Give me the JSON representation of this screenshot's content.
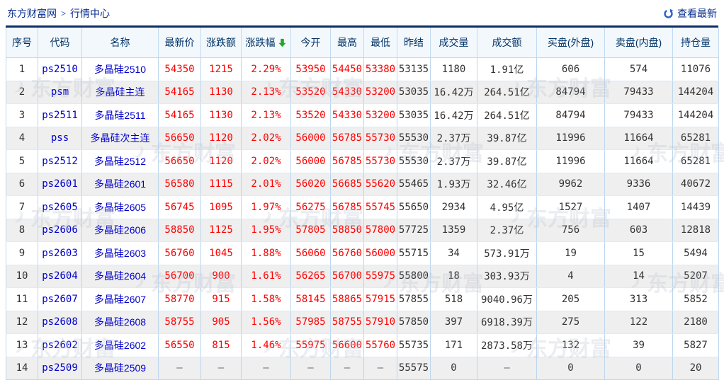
{
  "page": {
    "breadcrumb": {
      "home": "东方财富网",
      "separator": ">",
      "current": "行情中心"
    },
    "refresh_link": "查看最新",
    "watermark_text": "东方财富"
  },
  "colors": {
    "up_red": "#ff0000",
    "link_blue": "#0000cc",
    "navy_text": "#003366",
    "breadcrumb_navy": "#062c8e",
    "top_border_navy": "#0d2d66",
    "grid_blue": "#bcd6ee",
    "header_bg": "#f3f8fd",
    "row_alt_gray": "#efefef",
    "sort_arrow_green": "#22a822",
    "refresh_icon_blue": "#2b62c9"
  },
  "table": {
    "columns": [
      {
        "label": "序号",
        "key": "idx",
        "type": "idx"
      },
      {
        "label": "代码",
        "key": "code",
        "type": "code"
      },
      {
        "label": "名称",
        "key": "name",
        "type": "name"
      },
      {
        "label": "最新价",
        "key": "last",
        "type": "red"
      },
      {
        "label": "涨跌额",
        "key": "chg",
        "type": "red"
      },
      {
        "label": "涨跌幅",
        "key": "pct",
        "type": "red",
        "sorted": "desc"
      },
      {
        "label": "今开",
        "key": "open",
        "type": "red"
      },
      {
        "label": "最高",
        "key": "high",
        "type": "red"
      },
      {
        "label": "最低",
        "key": "low",
        "type": "red"
      },
      {
        "label": "昨结",
        "key": "prev",
        "type": "plain"
      },
      {
        "label": "成交量",
        "key": "vol",
        "type": "plain"
      },
      {
        "label": "成交额",
        "key": "amt",
        "type": "plain"
      },
      {
        "label": "买盘(外盘)",
        "key": "buy",
        "type": "plain"
      },
      {
        "label": "卖盘(内盘)",
        "key": "sell",
        "type": "plain"
      },
      {
        "label": "持仓量",
        "key": "oi",
        "type": "plain"
      }
    ],
    "rows": [
      {
        "idx": "1",
        "code": "ps2510",
        "name": "多晶硅2510",
        "last": "54350",
        "chg": "1215",
        "pct": "2.29%",
        "open": "53950",
        "high": "54450",
        "low": "53380",
        "prev": "53135",
        "vol": "1180",
        "amt": "1.91亿",
        "buy": "606",
        "sell": "574",
        "oi": "11076"
      },
      {
        "idx": "2",
        "code": "psm",
        "name": "多晶硅主连",
        "last": "54165",
        "chg": "1130",
        "pct": "2.13%",
        "open": "53520",
        "high": "54330",
        "low": "53200",
        "prev": "53035",
        "vol": "16.42万",
        "amt": "264.51亿",
        "buy": "84794",
        "sell": "79433",
        "oi": "144204"
      },
      {
        "idx": "3",
        "code": "ps2511",
        "name": "多晶硅2511",
        "last": "54165",
        "chg": "1130",
        "pct": "2.13%",
        "open": "53520",
        "high": "54330",
        "low": "53200",
        "prev": "53035",
        "vol": "16.42万",
        "amt": "264.51亿",
        "buy": "84794",
        "sell": "79433",
        "oi": "144204"
      },
      {
        "idx": "4",
        "code": "pss",
        "name": "多晶硅次主连",
        "last": "56650",
        "chg": "1120",
        "pct": "2.02%",
        "open": "56000",
        "high": "56785",
        "low": "55730",
        "prev": "55530",
        "vol": "2.37万",
        "amt": "39.87亿",
        "buy": "11996",
        "sell": "11664",
        "oi": "65281"
      },
      {
        "idx": "5",
        "code": "ps2512",
        "name": "多晶硅2512",
        "last": "56650",
        "chg": "1120",
        "pct": "2.02%",
        "open": "56000",
        "high": "56785",
        "low": "55730",
        "prev": "55530",
        "vol": "2.37万",
        "amt": "39.87亿",
        "buy": "11996",
        "sell": "11664",
        "oi": "65281"
      },
      {
        "idx": "6",
        "code": "ps2601",
        "name": "多晶硅2601",
        "last": "56580",
        "chg": "1115",
        "pct": "2.01%",
        "open": "56020",
        "high": "56685",
        "low": "55620",
        "prev": "55465",
        "vol": "1.93万",
        "amt": "32.46亿",
        "buy": "9962",
        "sell": "9336",
        "oi": "40672"
      },
      {
        "idx": "7",
        "code": "ps2605",
        "name": "多晶硅2605",
        "last": "56745",
        "chg": "1095",
        "pct": "1.97%",
        "open": "56275",
        "high": "56785",
        "low": "55745",
        "prev": "55650",
        "vol": "2934",
        "amt": "4.95亿",
        "buy": "1527",
        "sell": "1407",
        "oi": "14439"
      },
      {
        "idx": "8",
        "code": "ps2606",
        "name": "多晶硅2606",
        "last": "58850",
        "chg": "1125",
        "pct": "1.95%",
        "open": "57805",
        "high": "58850",
        "low": "57800",
        "prev": "57725",
        "vol": "1359",
        "amt": "2.37亿",
        "buy": "756",
        "sell": "603",
        "oi": "12818"
      },
      {
        "idx": "9",
        "code": "ps2603",
        "name": "多晶硅2603",
        "last": "56760",
        "chg": "1045",
        "pct": "1.88%",
        "open": "56060",
        "high": "56760",
        "low": "56000",
        "prev": "55715",
        "vol": "34",
        "amt": "573.91万",
        "buy": "19",
        "sell": "15",
        "oi": "5494"
      },
      {
        "idx": "10",
        "code": "ps2604",
        "name": "多晶硅2604",
        "last": "56700",
        "chg": "900",
        "pct": "1.61%",
        "open": "56265",
        "high": "56700",
        "low": "55975",
        "prev": "55800",
        "vol": "18",
        "amt": "303.93万",
        "buy": "4",
        "sell": "14",
        "oi": "5207"
      },
      {
        "idx": "11",
        "code": "ps2607",
        "name": "多晶硅2607",
        "last": "58770",
        "chg": "915",
        "pct": "1.58%",
        "open": "58145",
        "high": "58865",
        "low": "57915",
        "prev": "57855",
        "vol": "518",
        "amt": "9040.96万",
        "buy": "205",
        "sell": "313",
        "oi": "5852"
      },
      {
        "idx": "12",
        "code": "ps2608",
        "name": "多晶硅2608",
        "last": "58755",
        "chg": "905",
        "pct": "1.56%",
        "open": "57985",
        "high": "58755",
        "low": "57910",
        "prev": "57850",
        "vol": "397",
        "amt": "6918.39万",
        "buy": "275",
        "sell": "122",
        "oi": "2180"
      },
      {
        "idx": "13",
        "code": "ps2602",
        "name": "多晶硅2602",
        "last": "56550",
        "chg": "815",
        "pct": "1.46%",
        "open": "55975",
        "high": "56600",
        "low": "55760",
        "prev": "55735",
        "vol": "171",
        "amt": "2873.58万",
        "buy": "132",
        "sell": "39",
        "oi": "5827"
      },
      {
        "idx": "14",
        "code": "ps2509",
        "name": "多晶硅2509",
        "last": "–",
        "chg": "–",
        "pct": "–",
        "open": "–",
        "high": "–",
        "low": "–",
        "prev": "55575",
        "vol": "0",
        "amt": "–",
        "buy": "0",
        "sell": "0",
        "oi": "20"
      }
    ]
  }
}
